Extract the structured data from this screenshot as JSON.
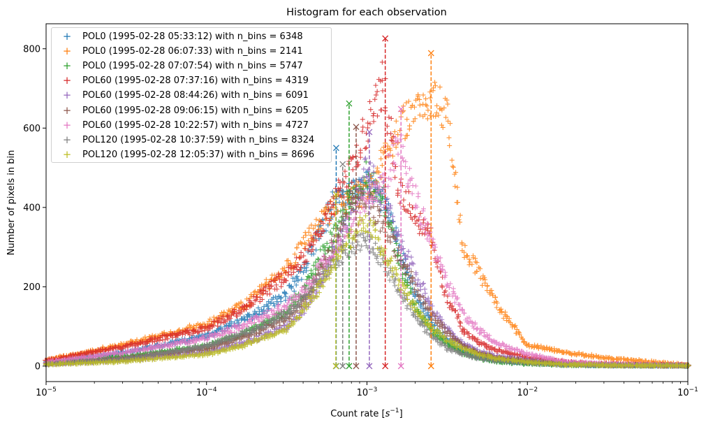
{
  "chart_data": {
    "type": "scatter",
    "title": "Histogram for each observation",
    "xlabel": "Count rate [s^-1]",
    "xlabel_base": "Count rate [",
    "xlabel_unit": "s",
    "xlabel_exp": "−1",
    "xlabel_close": "]",
    "ylabel": "Number of pixels in bin",
    "xscale": "log",
    "xlim": [
      1e-05,
      0.1
    ],
    "ylim": [
      -39,
      863
    ],
    "xticks": [
      {
        "base": "10",
        "exp": "−5"
      },
      {
        "base": "10",
        "exp": "−4"
      },
      {
        "base": "10",
        "exp": "−3"
      },
      {
        "base": "10",
        "exp": "−2"
      },
      {
        "base": "10",
        "exp": "−1"
      }
    ],
    "yticks": [
      "0",
      "200",
      "400",
      "600",
      "800"
    ],
    "grid": false,
    "legend_placement": "upper-left",
    "marker": "+",
    "peak_marker": "x",
    "x": [
      1e-05,
      3.16e-05,
      0.0001,
      0.000178,
      0.000316,
      0.000398,
      0.000501,
      0.000631,
      0.000794,
      0.001,
      0.00126,
      0.00158,
      0.002,
      0.00251,
      0.00316,
      0.00398,
      0.00501,
      0.00631,
      0.01,
      0.0178,
      0.0316,
      0.1
    ],
    "series": [
      {
        "name": "POL0 (1995-02-28 05:33:12) with n_bins = 6348",
        "color": "#1f77b4",
        "values": [
          10,
          35,
          75,
          120,
          180,
          240,
          330,
          420,
          440,
          460,
          420,
          300,
          180,
          110,
          65,
          38,
          22,
          14,
          8,
          4,
          2,
          1
        ],
        "peak": {
          "x": 0.000643,
          "y": 550
        }
      },
      {
        "name": "POL0 (1995-02-28 06:07:33) with n_bins = 2141",
        "color": "#ff7f0e",
        "values": [
          15,
          55,
          105,
          160,
          250,
          300,
          360,
          400,
          420,
          440,
          520,
          600,
          650,
          680,
          640,
          300,
          236,
          160,
          54,
          33,
          20,
          3
        ],
        "peak": {
          "x": 0.00251,
          "y": 789
        }
      },
      {
        "name": "POL0 (1995-02-28 07:07:54) with n_bins = 5747",
        "color": "#2ca02c",
        "values": [
          8,
          25,
          50,
          85,
          140,
          190,
          260,
          340,
          420,
          480,
          420,
          270,
          150,
          90,
          55,
          32,
          20,
          12,
          6,
          3,
          2,
          1
        ],
        "peak": {
          "x": 0.000774,
          "y": 662
        }
      },
      {
        "name": "POL60 (1995-02-28 07:37:16) with n_bins = 4319",
        "color": "#d62728",
        "values": [
          15,
          50,
          95,
          150,
          230,
          270,
          330,
          420,
          500,
          600,
          720,
          450,
          380,
          320,
          170,
          90,
          59,
          40,
          22,
          10,
          5,
          2
        ],
        "peak": {
          "x": 0.0013,
          "y": 826
        }
      },
      {
        "name": "POL60 (1995-02-28 08:44:26) with n_bins = 6091",
        "color": "#9467bd",
        "values": [
          5,
          15,
          35,
          60,
          100,
          140,
          200,
          290,
          380,
          500,
          430,
          320,
          230,
          150,
          95,
          56,
          38,
          26,
          15,
          7,
          3,
          1
        ],
        "peak": {
          "x": 0.001035,
          "y": 590
        }
      },
      {
        "name": "POL60 (1995-02-28 09:06:15) with n_bins = 6205",
        "color": "#8c564b",
        "values": [
          6,
          20,
          45,
          75,
          120,
          160,
          230,
          320,
          420,
          420,
          360,
          280,
          200,
          130,
          85,
          50,
          32,
          22,
          12,
          5,
          3,
          1
        ],
        "peak": {
          "x": 0.000856,
          "y": 603
        }
      },
      {
        "name": "POL60 (1995-02-28 10:22:57) with n_bins = 4727",
        "color": "#e377c2",
        "values": [
          10,
          35,
          70,
          105,
          153,
          190,
          240,
          300,
          360,
          420,
          460,
          560,
          420,
          310,
          210,
          130,
          90,
          60,
          30,
          10,
          5,
          2
        ],
        "peak": {
          "x": 0.00163,
          "y": 648
        }
      },
      {
        "name": "POL120 (1995-02-28 10:37:59) with n_bins = 8324",
        "color": "#7f7f7f",
        "values": [
          5,
          18,
          50,
          85,
          130,
          170,
          218,
          270,
          300,
          315,
          270,
          190,
          130,
          75,
          45,
          30,
          20,
          14,
          8,
          3,
          2,
          1
        ],
        "peak": {
          "x": 0.000706,
          "y": 509
        }
      },
      {
        "name": "POL120 (1995-02-28 12:05:37) with n_bins = 8696",
        "color": "#bcbd22",
        "values": [
          4,
          12,
          30,
          55,
          94,
          140,
          200,
          260,
          320,
          370,
          290,
          215,
          150,
          98,
          65,
          45,
          30,
          20,
          10,
          4,
          2,
          1
        ],
        "peak": {
          "x": 0.00064,
          "y": 433
        }
      }
    ]
  }
}
